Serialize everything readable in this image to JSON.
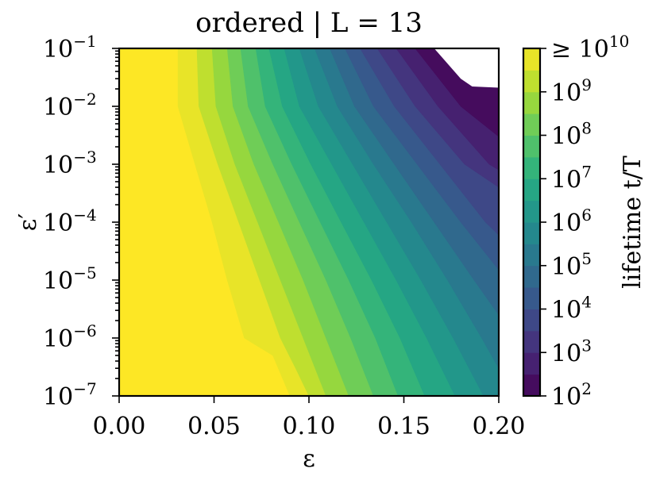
{
  "chart_data": {
    "type": "heatmap",
    "subtype": "filled-contour",
    "title": "ordered | L = 13",
    "xlabel": "ε",
    "ylabel": "ε′",
    "xlim": [
      0.0,
      0.2
    ],
    "ylim": [
      1e-07,
      0.1
    ],
    "yscale": "log",
    "x_ticks": [
      {
        "label": "0.00",
        "value": 0.0
      },
      {
        "label": "0.05",
        "value": 0.05
      },
      {
        "label": "0.10",
        "value": 0.1
      },
      {
        "label": "0.15",
        "value": 0.15
      },
      {
        "label": "0.20",
        "value": 0.2
      }
    ],
    "y_ticks": [
      {
        "base": "10",
        "exp": "−7",
        "value": 1e-07
      },
      {
        "base": "10",
        "exp": "−6",
        "value": 1e-06
      },
      {
        "base": "10",
        "exp": "−5",
        "value": 1e-05
      },
      {
        "base": "10",
        "exp": "−4",
        "value": 0.0001
      },
      {
        "base": "10",
        "exp": "−3",
        "value": 0.001
      },
      {
        "base": "10",
        "exp": "−2",
        "value": 0.01
      },
      {
        "base": "10",
        "exp": "−1",
        "value": 0.1
      }
    ],
    "colormap": "viridis",
    "colorbar": {
      "label": "lifetime t/T",
      "scale": "log",
      "range": [
        100.0,
        10000000000.0
      ],
      "levels_per_decade": 2,
      "ticks": [
        {
          "prefix": "",
          "base": "10",
          "exp": "2",
          "value": 100.0
        },
        {
          "prefix": "",
          "base": "10",
          "exp": "3",
          "value": 1000.0
        },
        {
          "prefix": "",
          "base": "10",
          "exp": "4",
          "value": 10000.0
        },
        {
          "prefix": "",
          "base": "10",
          "exp": "5",
          "value": 100000.0
        },
        {
          "prefix": "",
          "base": "10",
          "exp": "6",
          "value": 1000000.0
        },
        {
          "prefix": "",
          "base": "10",
          "exp": "7",
          "value": 10000000.0
        },
        {
          "prefix": "",
          "base": "10",
          "exp": "8",
          "value": 100000000.0
        },
        {
          "prefix": "",
          "base": "10",
          "exp": "9",
          "value": 1000000000.0
        },
        {
          "prefix": "≥ ",
          "base": "10",
          "exp": "10",
          "value": 10000000000.0
        }
      ]
    },
    "contour_boundaries": [
      {
        "level": 10000000000.0,
        "points": [
          [
            0.031,
            0.1
          ],
          [
            0.031,
            0.01
          ],
          [
            0.04,
            0.001
          ],
          [
            0.049,
            0.0001
          ],
          [
            0.057,
            1e-05
          ],
          [
            0.066,
            1e-06
          ],
          [
            0.081,
            5e-07
          ],
          [
            0.09,
            1e-07
          ]
        ]
      },
      {
        "level": 3160000000.0,
        "points": [
          [
            0.041,
            0.1
          ],
          [
            0.042,
            0.01
          ],
          [
            0.052,
            0.001
          ],
          [
            0.063,
            0.0001
          ],
          [
            0.074,
            1e-05
          ],
          [
            0.085,
            1e-06
          ],
          [
            0.093,
            3e-07
          ],
          [
            0.1,
            1e-07
          ]
        ]
      },
      {
        "level": 1000000000.0,
        "points": [
          [
            0.049,
            0.1
          ],
          [
            0.051,
            0.01
          ],
          [
            0.061,
            0.001
          ],
          [
            0.073,
            0.0001
          ],
          [
            0.085,
            1e-05
          ],
          [
            0.097,
            1e-06
          ],
          [
            0.109,
            1e-07
          ]
        ]
      },
      {
        "level": 316000000.0,
        "points": [
          [
            0.057,
            0.1
          ],
          [
            0.06,
            0.01
          ],
          [
            0.071,
            0.001
          ],
          [
            0.084,
            0.0001
          ],
          [
            0.097,
            1e-05
          ],
          [
            0.109,
            1e-06
          ],
          [
            0.121,
            1e-07
          ]
        ]
      },
      {
        "level": 100000000.0,
        "points": [
          [
            0.064,
            0.1
          ],
          [
            0.068,
            0.01
          ],
          [
            0.081,
            0.001
          ],
          [
            0.095,
            0.0001
          ],
          [
            0.109,
            1e-05
          ],
          [
            0.122,
            1e-06
          ],
          [
            0.134,
            1e-07
          ]
        ]
      },
      {
        "level": 31600000.0,
        "points": [
          [
            0.072,
            0.1
          ],
          [
            0.077,
            0.01
          ],
          [
            0.091,
            0.001
          ],
          [
            0.106,
            0.0001
          ],
          [
            0.121,
            1e-05
          ],
          [
            0.135,
            1e-06
          ],
          [
            0.147,
            1e-07
          ]
        ]
      },
      {
        "level": 10000000.0,
        "points": [
          [
            0.079,
            0.1
          ],
          [
            0.086,
            0.01
          ],
          [
            0.101,
            0.001
          ],
          [
            0.117,
            0.0001
          ],
          [
            0.133,
            1e-05
          ],
          [
            0.148,
            1e-06
          ],
          [
            0.161,
            1e-07
          ]
        ]
      },
      {
        "level": 3160000.0,
        "points": [
          [
            0.087,
            0.1
          ],
          [
            0.095,
            0.01
          ],
          [
            0.112,
            0.001
          ],
          [
            0.129,
            0.0001
          ],
          [
            0.146,
            1e-05
          ],
          [
            0.162,
            1e-06
          ],
          [
            0.177,
            1e-07
          ]
        ]
      },
      {
        "level": 1000000.0,
        "points": [
          [
            0.095,
            0.1
          ],
          [
            0.105,
            0.01
          ],
          [
            0.123,
            0.001
          ],
          [
            0.141,
            0.0001
          ],
          [
            0.159,
            1e-05
          ],
          [
            0.176,
            1e-06
          ],
          [
            0.192,
            1e-07
          ]
        ]
      },
      {
        "level": 316000.0,
        "points": [
          [
            0.103,
            0.1
          ],
          [
            0.115,
            0.01
          ],
          [
            0.134,
            0.001
          ],
          [
            0.154,
            0.0001
          ],
          [
            0.173,
            1e-05
          ],
          [
            0.191,
            1e-06
          ],
          [
            0.2,
            3e-07
          ]
        ]
      },
      {
        "level": 100000.0,
        "points": [
          [
            0.111,
            0.1
          ],
          [
            0.124,
            0.01
          ],
          [
            0.145,
            0.001
          ],
          [
            0.166,
            0.0001
          ],
          [
            0.187,
            1e-05
          ],
          [
            0.2,
            2.5e-06
          ]
        ]
      },
      {
        "level": 31600.0,
        "points": [
          [
            0.119,
            0.1
          ],
          [
            0.134,
            0.01
          ],
          [
            0.157,
            0.001
          ],
          [
            0.18,
            0.0001
          ],
          [
            0.2,
            1.5e-05
          ]
        ]
      },
      {
        "level": 10000.0,
        "points": [
          [
            0.127,
            0.1
          ],
          [
            0.145,
            0.01
          ],
          [
            0.169,
            0.001
          ],
          [
            0.193,
            0.0001
          ],
          [
            0.2,
            6e-05
          ]
        ]
      },
      {
        "level": 3160.0,
        "points": [
          [
            0.136,
            0.1
          ],
          [
            0.156,
            0.01
          ],
          [
            0.182,
            0.001
          ],
          [
            0.2,
            0.0004
          ]
        ]
      },
      {
        "level": 1000.0,
        "points": [
          [
            0.146,
            0.1
          ],
          [
            0.168,
            0.01
          ],
          [
            0.195,
            0.001
          ],
          [
            0.2,
            0.0008
          ]
        ]
      },
      {
        "level": 316.0,
        "points": [
          [
            0.156,
            0.1
          ],
          [
            0.18,
            0.01
          ],
          [
            0.2,
            0.003
          ]
        ]
      }
    ],
    "no_data_region": [
      [
        0.166,
        0.1
      ],
      [
        0.18,
        0.03
      ],
      [
        0.186,
        0.022
      ],
      [
        0.2,
        0.021
      ],
      [
        0.2,
        0.1
      ]
    ]
  }
}
